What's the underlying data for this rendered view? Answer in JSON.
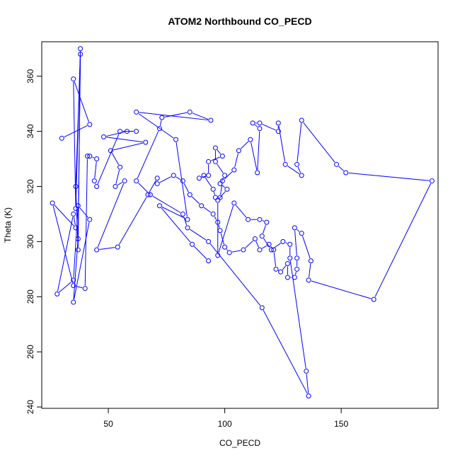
{
  "chart_data": {
    "type": "line",
    "title": "ATOM2 Northbound CO_PECD",
    "xlabel": "CO_PECD",
    "ylabel": "Theta (K)",
    "xlim": [
      21.4,
      191.6
    ],
    "ylim": [
      239.5,
      372.5
    ],
    "x_ticks": [
      50,
      100,
      150
    ],
    "y_ticks": [
      240,
      260,
      280,
      300,
      320,
      340,
      360
    ],
    "grid": false,
    "legend": "none",
    "marker": "open-circle",
    "series": [
      {
        "color": "#0000ff",
        "points": [
          [
            30,
            337.5
          ],
          [
            42,
            342.5
          ],
          [
            35,
            359
          ],
          [
            36,
            312
          ],
          [
            38,
            370
          ],
          [
            37,
            297
          ],
          [
            36,
            320
          ],
          [
            38,
            368
          ],
          [
            37,
            301
          ],
          [
            35,
            278
          ],
          [
            42,
            308
          ],
          [
            37,
            313
          ],
          [
            35,
            286
          ],
          [
            28,
            281
          ],
          [
            35,
            310
          ],
          [
            36,
            305
          ],
          [
            26,
            314
          ],
          [
            35,
            284
          ],
          [
            40,
            283
          ],
          [
            41,
            331
          ],
          [
            42,
            331
          ],
          [
            45,
            330
          ],
          [
            44,
            322
          ],
          [
            45,
            320
          ],
          [
            55,
            340
          ],
          [
            62,
            340
          ],
          [
            58,
            340
          ],
          [
            48,
            338
          ],
          [
            66,
            336
          ],
          [
            51,
            333
          ],
          [
            55,
            327
          ],
          [
            53,
            320
          ],
          [
            57,
            322
          ],
          [
            45,
            297
          ],
          [
            54,
            298
          ],
          [
            67,
            317
          ],
          [
            71,
            323
          ],
          [
            71,
            321
          ],
          [
            78,
            324
          ],
          [
            82,
            322
          ],
          [
            85,
            317
          ],
          [
            90,
            313
          ],
          [
            95,
            310
          ],
          [
            97,
            307
          ],
          [
            98,
            304
          ],
          [
            100,
            298
          ],
          [
            102,
            296
          ],
          [
            108,
            297
          ],
          [
            113,
            301
          ],
          [
            115,
            297
          ],
          [
            119,
            299
          ],
          [
            121,
            297
          ],
          [
            122,
            290
          ],
          [
            124,
            289
          ],
          [
            127,
            292
          ],
          [
            127,
            287
          ],
          [
            130,
            287
          ],
          [
            131,
            290
          ],
          [
            131,
            294
          ],
          [
            130,
            305
          ],
          [
            133,
            303
          ],
          [
            137,
            293
          ],
          [
            136,
            286
          ],
          [
            164,
            279
          ],
          [
            189,
            322
          ],
          [
            152,
            325
          ],
          [
            148,
            328
          ],
          [
            133,
            344
          ],
          [
            131,
            328
          ],
          [
            133,
            324
          ],
          [
            126,
            328
          ],
          [
            123,
            343
          ],
          [
            123,
            340
          ],
          [
            115,
            343
          ],
          [
            112,
            343
          ],
          [
            115,
            341
          ],
          [
            114,
            325
          ],
          [
            111,
            337
          ],
          [
            106,
            333
          ],
          [
            104,
            326
          ],
          [
            99,
            322
          ],
          [
            98,
            316
          ],
          [
            96,
            316
          ],
          [
            95,
            319
          ],
          [
            91,
            324
          ],
          [
            89,
            323
          ],
          [
            93,
            324
          ],
          [
            93,
            329
          ],
          [
            99,
            331
          ],
          [
            96,
            334
          ],
          [
            96,
            329
          ],
          [
            100,
            324
          ],
          [
            98,
            321
          ],
          [
            101,
            319
          ],
          [
            97,
            315
          ],
          [
            97,
            295
          ],
          [
            104,
            314
          ],
          [
            110,
            308
          ],
          [
            115,
            308
          ],
          [
            118,
            307
          ],
          [
            116,
            302
          ],
          [
            120,
            297
          ],
          [
            125,
            300
          ],
          [
            128,
            299
          ],
          [
            128,
            294
          ],
          [
            135,
            253
          ],
          [
            136,
            244
          ],
          [
            116,
            276
          ],
          [
            93,
            300
          ],
          [
            84,
            305
          ],
          [
            82,
            310
          ],
          [
            68,
            317
          ],
          [
            62,
            322
          ],
          [
            72,
            341
          ],
          [
            73,
            345
          ],
          [
            85,
            347
          ],
          [
            94,
            344
          ],
          [
            62,
            347
          ],
          [
            79,
            337
          ],
          [
            84,
            308
          ],
          [
            72,
            313
          ],
          [
            86,
            299
          ],
          [
            93,
            293
          ]
        ]
      }
    ]
  }
}
